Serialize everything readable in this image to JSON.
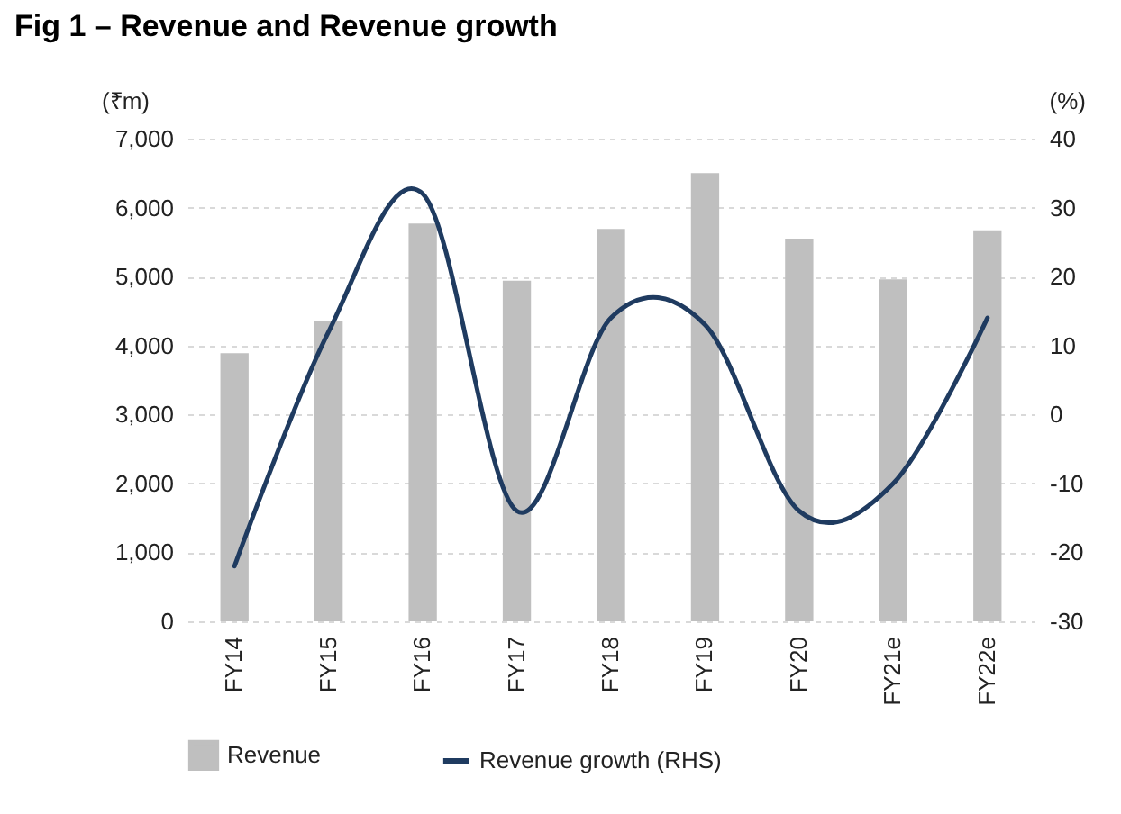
{
  "chart_data": {
    "type": "bar",
    "title": "Fig 1 – Revenue and Revenue growth",
    "ylabel": "(₹m)",
    "y2label": "(%)",
    "categories": [
      "FY14",
      "FY15",
      "FY16",
      "FY17",
      "FY18",
      "FY19",
      "FY20",
      "FY21e",
      "FY22e"
    ],
    "series": [
      {
        "name": "Revenue",
        "color": "#bfbfbf",
        "values": [
          3890,
          4360,
          5770,
          4940,
          5690,
          6500,
          5550,
          4960,
          5670
        ]
      },
      {
        "name": "Revenue growth (RHS)",
        "type": "line",
        "axis": "y2",
        "color": "#1f3b60",
        "values": [
          -22,
          12,
          32,
          -14,
          14,
          13,
          -14,
          -10,
          14
        ]
      }
    ],
    "ylim": [
      0,
      7000
    ],
    "yticks": [
      0,
      {
        "value": 1000,
        "label": "1,000"
      },
      {
        "value": 2000,
        "label": "2,000"
      },
      {
        "value": 3000,
        "label": "3,000"
      },
      {
        "value": 4000,
        "label": "4,000"
      },
      {
        "value": 5000,
        "label": "5,000"
      },
      {
        "value": 6000,
        "label": "6,000"
      },
      {
        "value": 7000,
        "label": "7,000"
      }
    ],
    "y2lim": [
      -30,
      40
    ],
    "y2ticks": [
      -30,
      -20,
      -10,
      0,
      10,
      20,
      30,
      40
    ],
    "grid": "y",
    "legend": "bottom"
  }
}
